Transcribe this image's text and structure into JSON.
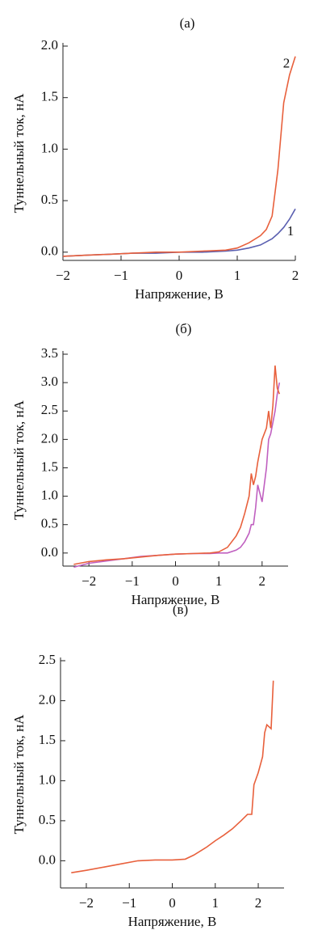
{
  "chart_data": [
    {
      "type": "line",
      "title": "(a)",
      "x_label": "Напряжение, В",
      "y_label": "Туннельный ток, нА",
      "x": [
        -2,
        -1.6,
        -1.2,
        -0.8,
        -0.4,
        0,
        0.4,
        0.8,
        1.0,
        1.2,
        1.4,
        1.5,
        1.6,
        1.7,
        1.8,
        1.9,
        2.0
      ],
      "series": [
        {
          "name": "1",
          "color": "#5a5fb0",
          "values": [
            -0.04,
            -0.03,
            -0.02,
            -0.01,
            -0.01,
            0,
            0,
            0.01,
            0.02,
            0.04,
            0.07,
            0.1,
            0.13,
            0.18,
            0.24,
            0.32,
            0.42
          ]
        },
        {
          "name": "2",
          "color": "#e8603c",
          "values": [
            -0.04,
            -0.03,
            -0.02,
            -0.01,
            0,
            0,
            0.01,
            0.02,
            0.04,
            0.09,
            0.16,
            0.22,
            0.35,
            0.8,
            1.45,
            1.72,
            1.9
          ]
        }
      ],
      "xlim": [
        -2,
        2
      ],
      "ylim": [
        -0.08,
        2.0
      ],
      "xticks": [
        {
          "value": -2,
          "label": "−2"
        },
        {
          "value": -1,
          "label": "−1"
        },
        0,
        1,
        2
      ],
      "yticks": [
        {
          "value": 0,
          "label": "0.0"
        },
        0.5,
        {
          "value": 1,
          "label": "1.0"
        },
        1.5,
        {
          "value": 2,
          "label": "2.0"
        }
      ]
    },
    {
      "type": "line",
      "title": "(б)",
      "x_label": "Напряжение, В",
      "y_label": "Туннельный ток, нА",
      "x": [
        -2.35,
        -2,
        -1.6,
        -1.2,
        -0.8,
        -0.4,
        0,
        0.4,
        0.8,
        1.0,
        1.2,
        1.4,
        1.5,
        1.6,
        1.7,
        1.75,
        1.8,
        1.85,
        1.9,
        2.0,
        2.1,
        2.15,
        2.2,
        2.25,
        2.3,
        2.35,
        2.4
      ],
      "series": [
        {
          "color": "#c060c0",
          "values": [
            -0.25,
            -0.18,
            -0.14,
            -0.1,
            -0.06,
            -0.04,
            -0.02,
            -0.01,
            -0.01,
            0,
            0,
            0.05,
            0.1,
            0.2,
            0.35,
            0.5,
            0.5,
            0.8,
            1.2,
            0.9,
            1.5,
            2.0,
            2.1,
            2.3,
            2.5,
            2.8,
            3.0
          ]
        },
        {
          "color": "#e8603c",
          "values": [
            -0.2,
            -0.15,
            -0.12,
            -0.1,
            -0.07,
            -0.04,
            -0.02,
            -0.01,
            0,
            0.02,
            0.1,
            0.3,
            0.45,
            0.7,
            1.0,
            1.4,
            1.2,
            1.35,
            1.6,
            2.0,
            2.2,
            2.5,
            2.2,
            2.6,
            3.3,
            2.9,
            2.8
          ]
        }
      ],
      "xlim": [
        -2.6,
        2.6
      ],
      "ylim": [
        -0.23,
        3.5
      ],
      "xticks": [
        {
          "value": -2,
          "label": "−2"
        },
        {
          "value": -1,
          "label": "−1"
        },
        0,
        1,
        2
      ],
      "yticks": [
        {
          "value": 0,
          "label": "0.0"
        },
        0.5,
        {
          "value": 1,
          "label": "1.0"
        },
        1.5,
        {
          "value": 2,
          "label": "2.0"
        },
        2.5,
        {
          "value": 3,
          "label": "3.0"
        },
        3.5
      ]
    },
    {
      "type": "line",
      "title": "(в)",
      "x_label": "Напряжение, В",
      "y_label": "Туннельный ток, нА",
      "x": [
        -2.35,
        -2,
        -1.6,
        -1.2,
        -0.8,
        -0.4,
        0,
        0.3,
        0.5,
        0.8,
        1.0,
        1.2,
        1.4,
        1.6,
        1.75,
        1.85,
        1.9,
        2.0,
        2.1,
        2.15,
        2.2,
        2.3,
        2.35
      ],
      "series": [
        {
          "color": "#e8603c",
          "values": [
            -0.15,
            -0.12,
            -0.08,
            -0.04,
            0,
            0.01,
            0.01,
            0.02,
            0.07,
            0.17,
            0.25,
            0.32,
            0.4,
            0.5,
            0.58,
            0.58,
            0.95,
            1.1,
            1.3,
            1.6,
            1.7,
            1.65,
            2.25
          ]
        }
      ],
      "xlim": [
        -2.6,
        2.6
      ],
      "ylim": [
        -0.34,
        2.5
      ],
      "xticks": [
        {
          "value": -2,
          "label": "−2"
        },
        {
          "value": -1,
          "label": "−1"
        },
        0,
        1,
        2
      ],
      "yticks": [
        {
          "value": 0,
          "label": "0.0"
        },
        0.5,
        {
          "value": 1,
          "label": "1.0"
        },
        1.5,
        {
          "value": 2,
          "label": "2.0"
        },
        2.5
      ]
    }
  ]
}
